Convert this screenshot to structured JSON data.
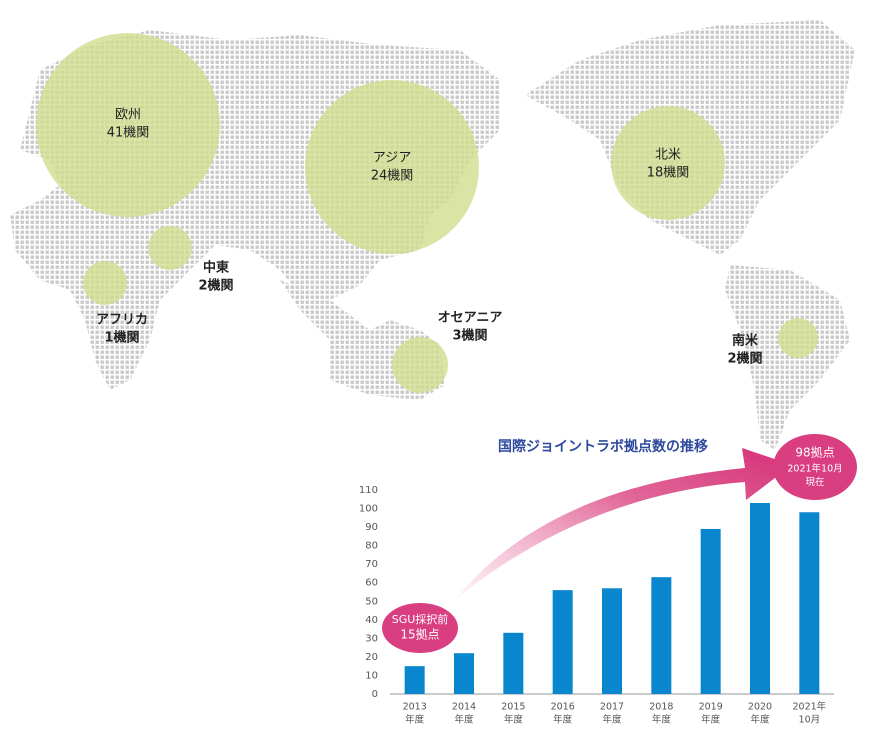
{
  "map": {
    "regions": [
      {
        "name": "欧州",
        "count": "41機関"
      },
      {
        "name": "中東",
        "count": "2機関"
      },
      {
        "name": "アフリカ",
        "count": "1機関"
      },
      {
        "name": "アジア",
        "count": "24機関"
      },
      {
        "name": "オセアニア",
        "count": "3機関"
      },
      {
        "name": "北米",
        "count": "18機関"
      },
      {
        "name": "南米",
        "count": "2機関"
      }
    ]
  },
  "chart_data": {
    "type": "bar",
    "title": "国際ジョイントラボ拠点数の推移",
    "categories": [
      "2013",
      "2014",
      "2015",
      "2016",
      "2017",
      "2018",
      "2019",
      "2020",
      "2021年"
    ],
    "category_sublabels": [
      "年度",
      "年度",
      "年度",
      "年度",
      "年度",
      "年度",
      "年度",
      "年度",
      "10月"
    ],
    "values": [
      15,
      22,
      33,
      56,
      57,
      63,
      89,
      103,
      98
    ],
    "color": "#0a86cf",
    "ylim": [
      0,
      110
    ],
    "yticks": [
      0,
      10,
      20,
      30,
      40,
      50,
      60,
      70,
      80,
      90,
      100,
      110
    ],
    "annotations": [
      {
        "lines": [
          "SGU採択前",
          "15拠点"
        ]
      },
      {
        "lines": [
          "98拠点",
          "2021年10月",
          "現在"
        ]
      }
    ]
  }
}
